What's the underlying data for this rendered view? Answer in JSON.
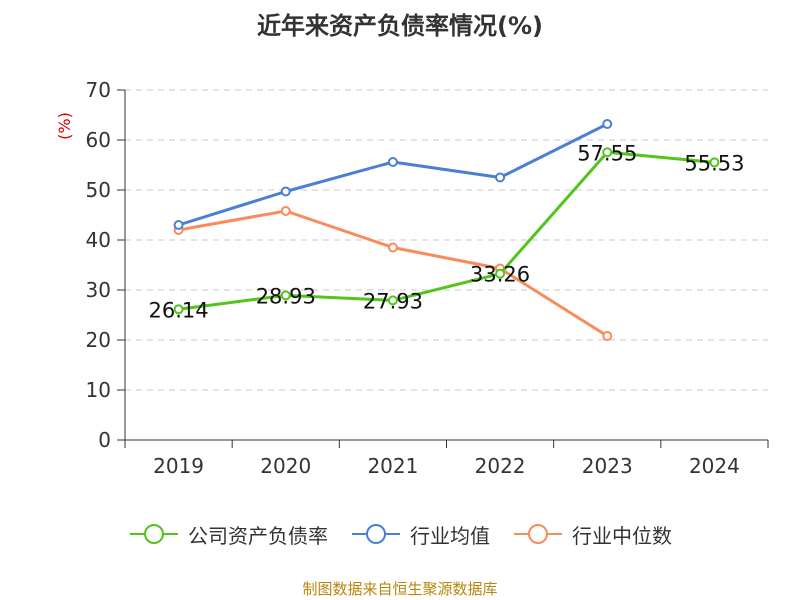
{
  "title": "近年来资产负债率情况(%)",
  "source": "制图数据来自恒生聚源数据库",
  "chart_data": {
    "type": "line",
    "title": "近年来资产负债率情况(%)",
    "xlabel": "",
    "ylabel": "(%)",
    "ylim": [
      0,
      70
    ],
    "yticks": [
      0,
      10,
      20,
      30,
      40,
      50,
      60,
      70
    ],
    "categories": [
      "2019",
      "2020",
      "2021",
      "2022",
      "2023",
      "2024"
    ],
    "grid": true,
    "legend_position": "bottom",
    "series": [
      {
        "name": "公司资产负债率",
        "color": "#52c41a",
        "values": [
          26.14,
          28.93,
          27.93,
          33.26,
          57.55,
          55.53
        ],
        "labels": [
          "26.14",
          "28.93",
          "27.93",
          "33.26",
          "57.55",
          "55.53"
        ]
      },
      {
        "name": "行业均值",
        "color": "#4a7fd4",
        "values": [
          43.0,
          49.7,
          55.6,
          52.5,
          63.2,
          null
        ]
      },
      {
        "name": "行业中位数",
        "color": "#f98b5a",
        "values": [
          42.0,
          45.8,
          38.5,
          34.3,
          20.8,
          null
        ]
      }
    ]
  }
}
